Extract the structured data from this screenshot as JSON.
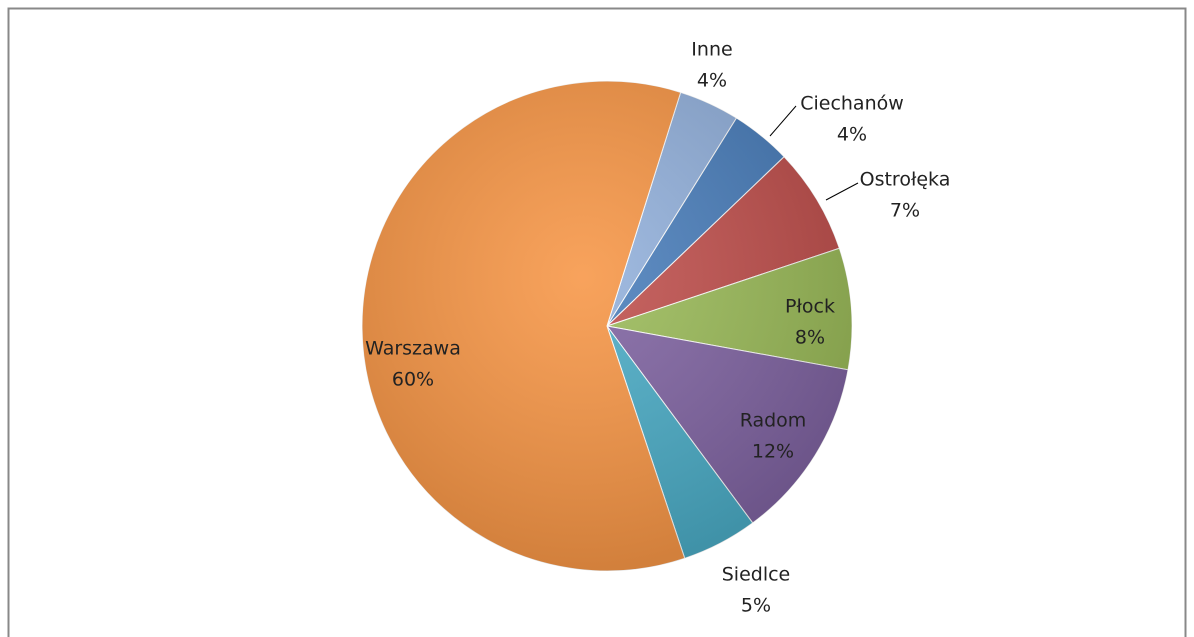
{
  "chart_data": {
    "type": "pie",
    "categories": [
      "Inne",
      "Ciechanów",
      "Ostrołęka",
      "Płock",
      "Radom",
      "Siedlce",
      "Warszawa"
    ],
    "values": [
      4,
      4,
      7,
      8,
      12,
      5,
      60
    ],
    "value_labels": [
      "4%",
      "4%",
      "7%",
      "8%",
      "12%",
      "5%",
      "60%"
    ],
    "colors": [
      "#93b1dc",
      "#4a7ebb",
      "#c0504d",
      "#9bbb59",
      "#8064a2",
      "#4bacc6",
      "#f79646"
    ]
  }
}
